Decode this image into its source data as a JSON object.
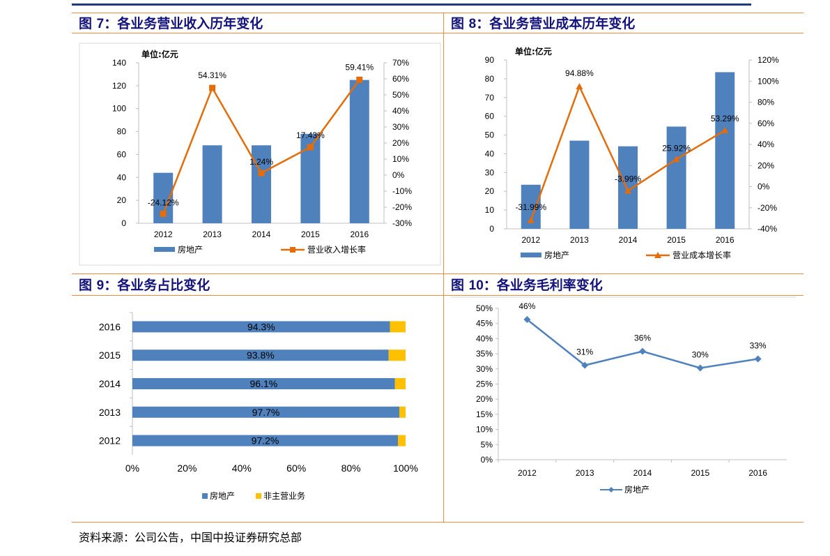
{
  "figures": [
    {
      "prefix": "图 ",
      "num": "7",
      "rest": "：各业务营业收入历年变化"
    },
    {
      "prefix": "图 ",
      "num": "8",
      "rest": "：各业务营业成本历年变化"
    },
    {
      "prefix": "图 ",
      "num": "9",
      "rest": "：各业务占比变化"
    },
    {
      "prefix": "图 ",
      "num": "10",
      "rest": "：各业务毛利率变化"
    }
  ],
  "source": "资料来源：公司公告，中国中投证券研究总部",
  "colors": {
    "blue": "#4f81bd",
    "orange": "#e46c0a",
    "yellow": "#ffc000",
    "title": "#12127a",
    "rule": "#f08a3c"
  },
  "chart_data": [
    {
      "type": "bar",
      "unit_label": "单位:亿元",
      "categories": [
        "2012",
        "2013",
        "2014",
        "2015",
        "2016"
      ],
      "ylim": [
        0,
        140
      ],
      "yticks": [
        "0",
        "20",
        "40",
        "60",
        "80",
        "100",
        "120",
        "140"
      ],
      "y2lim": [
        -30,
        70
      ],
      "y2ticks": [
        "-30%",
        "-20%",
        "-10%",
        "0%",
        "10%",
        "20%",
        "30%",
        "40%",
        "50%",
        "60%",
        "70%"
      ],
      "series": [
        {
          "name": "房地产",
          "type": "bar",
          "values": [
            44,
            68,
            68,
            78,
            125
          ]
        },
        {
          "name": "营业收入增长率",
          "type": "line",
          "axis": "right",
          "values": [
            -24.12,
            54.31,
            1.24,
            17.43,
            59.41
          ],
          "labels": [
            "-24.12%",
            "54.31%",
            "1.24%",
            "17.43%",
            "59.41%"
          ]
        }
      ],
      "legend": "bottom"
    },
    {
      "type": "bar",
      "unit_label": "单位:亿元",
      "categories": [
        "2012",
        "2013",
        "2014",
        "2015",
        "2016"
      ],
      "ylim": [
        0,
        90
      ],
      "yticks": [
        "0",
        "10",
        "20",
        "30",
        "40",
        "50",
        "60",
        "70",
        "80",
        "90"
      ],
      "y2lim": [
        -40,
        120
      ],
      "y2ticks": [
        "-40%",
        "-20%",
        "0%",
        "20%",
        "40%",
        "60%",
        "80%",
        "100%",
        "120%"
      ],
      "series": [
        {
          "name": "房地产",
          "type": "bar",
          "values": [
            23.5,
            47,
            44,
            54.5,
            83.5
          ]
        },
        {
          "name": "营业成本增长率",
          "type": "line",
          "axis": "right",
          "values": [
            -31.99,
            94.88,
            -3.99,
            25.92,
            53.29
          ],
          "labels": [
            "-31.99%",
            "94.88%",
            "-3.99%",
            "25.92%",
            "53.29%"
          ]
        }
      ],
      "legend": "bottom"
    },
    {
      "type": "bar",
      "orientation": "horizontal-stacked",
      "categories": [
        "2016",
        "2015",
        "2014",
        "2013",
        "2012"
      ],
      "xticks": [
        "0%",
        "20%",
        "40%",
        "60%",
        "80%",
        "100%"
      ],
      "series": [
        {
          "name": "房地产",
          "values": [
            94.3,
            93.8,
            96.1,
            97.7,
            97.2
          ],
          "labels": [
            "94.3%",
            "93.8%",
            "96.1%",
            "97.7%",
            "97.2%"
          ]
        },
        {
          "name": "非主营业务",
          "values": [
            5.7,
            6.2,
            3.9,
            2.3,
            2.8
          ]
        }
      ],
      "legend": "bottom"
    },
    {
      "type": "line",
      "categories": [
        "2012",
        "2013",
        "2014",
        "2015",
        "2016"
      ],
      "ylim": [
        0,
        50
      ],
      "yticks": [
        "0%",
        "5%",
        "10%",
        "15%",
        "20%",
        "25%",
        "30%",
        "35%",
        "40%",
        "45%",
        "50%"
      ],
      "series": [
        {
          "name": "房地产",
          "values": [
            46.3,
            31.2,
            35.8,
            30.3,
            33.3
          ],
          "labels": [
            "46%",
            "31%",
            "36%",
            "30%",
            "33%"
          ]
        }
      ],
      "legend": "bottom"
    }
  ]
}
